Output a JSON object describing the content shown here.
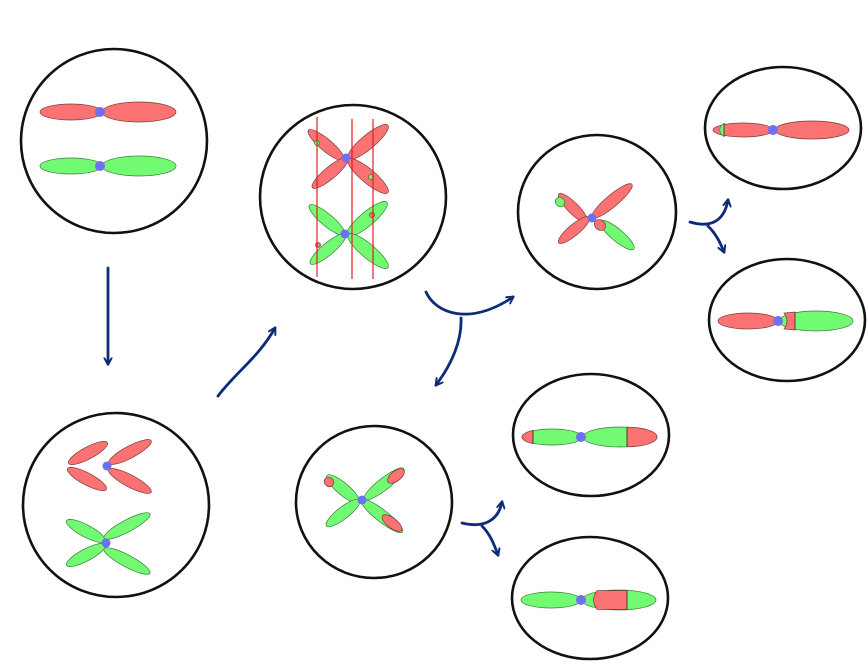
{
  "colors": {
    "maternal": "#fb7272",
    "paternal": "#72fb72",
    "centromere": "#6f6ff2",
    "outline": "#111111",
    "arrow": "#0d2b78",
    "cut_line": "#e01f1f",
    "background": "#ffffff"
  },
  "cells": [
    {
      "id": "parent-cell",
      "stage": "unreplicated-homologs"
    },
    {
      "id": "replicated-cell",
      "stage": "replicated-homologs"
    },
    {
      "id": "crossover-cell",
      "stage": "crossing-over"
    },
    {
      "id": "daughter-cell-upper",
      "stage": "meiosis-i-product"
    },
    {
      "id": "daughter-cell-lower",
      "stage": "meiosis-i-product"
    },
    {
      "id": "gamete-1",
      "stage": "meiosis-ii-product"
    },
    {
      "id": "gamete-2",
      "stage": "meiosis-ii-product"
    },
    {
      "id": "gamete-3",
      "stage": "meiosis-ii-product"
    },
    {
      "id": "gamete-4",
      "stage": "meiosis-ii-product"
    }
  ],
  "arrows": [
    {
      "id": "replication-arrow",
      "from": "parent-cell",
      "to": "replicated-cell"
    },
    {
      "id": "synapsis-arrow",
      "from": "replicated-cell",
      "to": "crossover-cell"
    },
    {
      "id": "meiosis-i-split-arrow",
      "from": "crossover-cell",
      "to": [
        "daughter-cell-upper",
        "daughter-cell-lower"
      ]
    },
    {
      "id": "meiosis-ii-split-arrow-upper",
      "from": "daughter-cell-upper",
      "to": [
        "gamete-1",
        "gamete-2"
      ]
    },
    {
      "id": "meiosis-ii-split-arrow-lower",
      "from": "daughter-cell-lower",
      "to": [
        "gamete-3",
        "gamete-4"
      ]
    }
  ]
}
